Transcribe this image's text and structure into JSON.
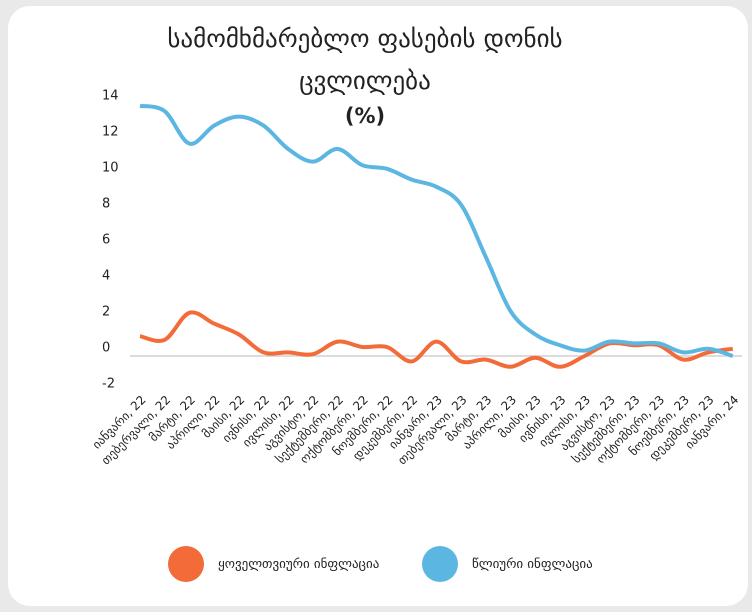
{
  "chart_data": {
    "type": "line",
    "title": "სამომხმარებლო ფასების დონის ცვლილება",
    "subtitle": "(%)",
    "categories": [
      "იანვარი, 22",
      "თებერვალი, 22",
      "მარტი, 22",
      "აპრილი, 22",
      "მაისი, 22",
      "ივნისი, 22",
      "ივლისი, 22",
      "აგვისტო, 22",
      "სექტემბერი, 22",
      "ოქტომბერი, 22",
      "ნოემბერი, 22",
      "დეკემბერი, 22",
      "იანვარი, 23",
      "თებერვალი, 23",
      "მარტი, 23",
      "აპრილი, 23",
      "მაისი, 23",
      "ივნისი, 23",
      "ივლისი, 23",
      "აგვისტო, 23",
      "სექტემბერი, 23",
      "ოქტომბერი, 23",
      "ნოემბერი, 23",
      "დეკემბერი, 23",
      "იანვარი, 24"
    ],
    "series": [
      {
        "name": "ყოველთვიური ინფლაცია",
        "color": "#f26b38",
        "values": [
          1.1,
          0.9,
          2.4,
          1.8,
          1.2,
          0.2,
          0.2,
          0.1,
          0.8,
          0.5,
          0.5,
          -0.3,
          0.8,
          -0.3,
          -0.2,
          -0.6,
          -0.1,
          -0.6,
          0.0,
          0.7,
          0.6,
          0.6,
          -0.2,
          0.2,
          0.4
        ]
      },
      {
        "name": "წლიური ინფლაცია",
        "color": "#5bb6e2",
        "values": [
          13.9,
          13.6,
          11.8,
          12.8,
          13.3,
          12.8,
          11.5,
          10.8,
          11.5,
          10.6,
          10.4,
          9.8,
          9.4,
          8.4,
          5.5,
          2.5,
          1.2,
          0.6,
          0.3,
          0.8,
          0.7,
          0.7,
          0.2,
          0.4,
          0.0
        ]
      }
    ],
    "ylim": [
      -2,
      15
    ],
    "yticks": [
      -2,
      0,
      2,
      4,
      6,
      8,
      10,
      12,
      14
    ]
  }
}
